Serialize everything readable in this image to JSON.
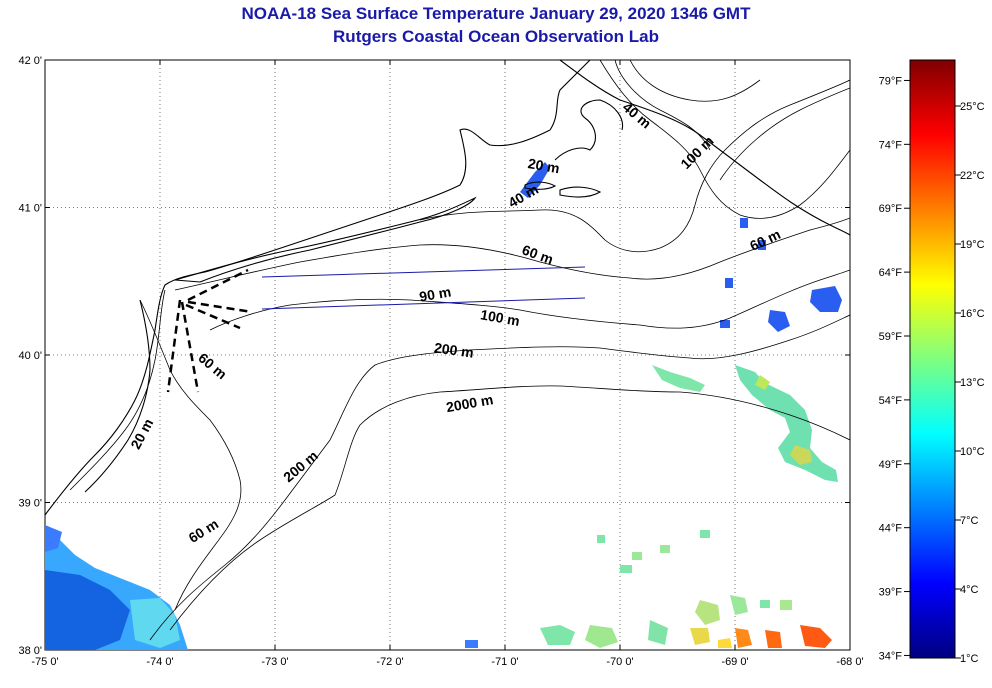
{
  "title": {
    "line1": "NOAA-18 Sea Surface Temperature January 29, 2020 1346 GMT",
    "line2": "Rutgers Coastal Ocean Observation Lab"
  },
  "map": {
    "lon_range": [
      -75,
      -68
    ],
    "lat_range": [
      38,
      42
    ],
    "lon_ticks": [
      -75,
      -74,
      -73,
      -72,
      -71,
      -70,
      -69,
      -68
    ],
    "lon_tick_labels": [
      "-75 0'",
      "-74 0'",
      "-73 0'",
      "-72 0'",
      "-71 0'",
      "-70 0'",
      "-69 0'",
      "-68 0'"
    ],
    "lat_ticks": [
      42,
      41,
      40,
      39,
      38
    ],
    "lat_tick_labels": [
      "42 0'",
      "41 0'",
      "40 0'",
      "39 0'",
      "38 0'"
    ],
    "gridlines": "dotted",
    "land_color": "#ffffff",
    "coastline_color": "#000000",
    "contour_color": "#000000",
    "transect_color": "#1a1aa8"
  },
  "contour_labels": [
    {
      "text": "20 m",
      "lon": -74.12,
      "lat": 39.45,
      "angle": -62
    },
    {
      "text": "60 m",
      "lon": -73.57,
      "lat": 39.9,
      "angle": 40
    },
    {
      "text": "60 m",
      "lon": -73.6,
      "lat": 38.78,
      "angle": -32
    },
    {
      "text": "200 m",
      "lon": -72.75,
      "lat": 39.22,
      "angle": -40
    },
    {
      "text": "200 m",
      "lon": -71.45,
      "lat": 40.0,
      "angle": 8
    },
    {
      "text": "2000 m",
      "lon": -71.3,
      "lat": 39.64,
      "angle": -10
    },
    {
      "text": "90 m",
      "lon": -71.6,
      "lat": 40.38,
      "angle": -10
    },
    {
      "text": "100 m",
      "lon": -71.05,
      "lat": 40.22,
      "angle": 10
    },
    {
      "text": "60 m",
      "lon": -70.73,
      "lat": 40.65,
      "angle": 20
    },
    {
      "text": "40 m",
      "lon": -70.82,
      "lat": 41.05,
      "angle": -30
    },
    {
      "text": "20 m",
      "lon": -70.67,
      "lat": 41.25,
      "angle": 10
    },
    {
      "text": "40 m",
      "lon": -69.88,
      "lat": 41.6,
      "angle": 40
    },
    {
      "text": "100 m",
      "lon": -69.3,
      "lat": 41.35,
      "angle": -45
    },
    {
      "text": "60 m",
      "lon": -68.72,
      "lat": 40.75,
      "angle": -25
    }
  ],
  "colorbar": {
    "fahrenheit_labels": [
      "79°F",
      "74°F",
      "69°F",
      "64°F",
      "59°F",
      "54°F",
      "49°F",
      "44°F",
      "39°F",
      "34°F"
    ],
    "celsius_labels": [
      "25°C",
      "22°C",
      "19°C",
      "16°C",
      "13°C",
      "10°C",
      "7°C",
      "4°C",
      "1°C"
    ],
    "celsius_min": 1,
    "celsius_max": 27,
    "colors": [
      "#00007f",
      "#0000ff",
      "#007fff",
      "#00ffff",
      "#7fff7f",
      "#ffff00",
      "#ff7f00",
      "#ff0000",
      "#7f0000"
    ]
  }
}
